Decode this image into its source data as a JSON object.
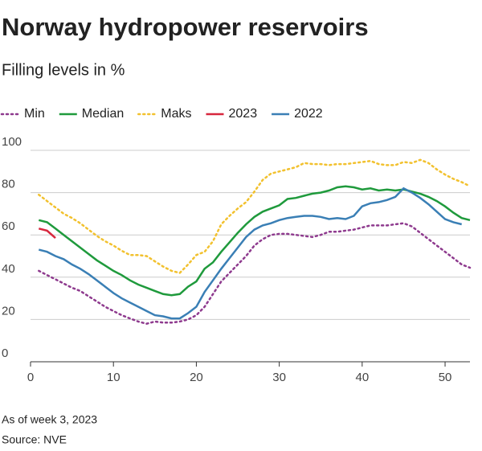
{
  "chart_data": {
    "type": "line",
    "title": "Norway hydropower reservoirs",
    "subtitle": "Filling levels in %",
    "x": [
      1,
      2,
      3,
      4,
      5,
      6,
      7,
      8,
      9,
      10,
      11,
      12,
      13,
      14,
      15,
      16,
      17,
      18,
      19,
      20,
      21,
      22,
      23,
      24,
      25,
      26,
      27,
      28,
      29,
      30,
      31,
      32,
      33,
      34,
      35,
      36,
      37,
      38,
      39,
      40,
      41,
      42,
      43,
      44,
      45,
      46,
      47,
      48,
      49,
      50,
      51,
      52,
      53
    ],
    "xlim": [
      0,
      53
    ],
    "xticks": [
      0,
      10,
      20,
      30,
      40,
      50
    ],
    "ylim": [
      0,
      100
    ],
    "yticks": [
      0,
      20,
      40,
      60,
      80,
      100
    ],
    "grid": true,
    "series": [
      {
        "name": "Min",
        "color": "#8e3a8e",
        "dash": "dotted",
        "values": [
          43,
          41,
          39,
          37,
          35,
          33.5,
          31,
          28.5,
          26,
          24,
          22,
          20.5,
          19,
          18,
          19,
          18.5,
          18.5,
          19,
          20,
          22,
          26,
          32,
          38,
          42,
          46,
          50,
          55,
          58,
          60,
          60.5,
          60.5,
          60,
          59.5,
          59,
          60,
          61.5,
          61.5,
          62,
          62.5,
          63.5,
          64.5,
          64.5,
          64.5,
          65,
          65.5,
          64,
          61,
          58,
          55,
          52,
          49,
          46,
          44.5
        ]
      },
      {
        "name": "Median",
        "color": "#1f9a3c",
        "dash": "solid",
        "values": [
          67,
          66,
          63,
          60,
          57,
          54,
          51,
          48,
          45.5,
          43,
          41,
          38.5,
          36.5,
          35,
          33.5,
          32,
          31.5,
          32,
          35.5,
          38,
          44,
          47,
          52,
          56.5,
          61,
          65,
          68.5,
          71,
          72.5,
          74,
          77,
          77.5,
          78.5,
          79.5,
          80,
          81,
          82.5,
          83,
          82.5,
          81.5,
          82,
          81,
          81.5,
          81,
          81.5,
          80.5,
          79.5,
          78,
          76,
          73.5,
          70.5,
          68,
          67
        ]
      },
      {
        "name": "Maks",
        "color": "#f2c12e",
        "dash": "dotted",
        "values": [
          79,
          76,
          73,
          70,
          68,
          65.5,
          62.5,
          59.5,
          57,
          55,
          52.5,
          50.5,
          50.5,
          50,
          47.5,
          45,
          43,
          42,
          46,
          50.5,
          52,
          57,
          65,
          69,
          72.5,
          75.5,
          80.5,
          86,
          89,
          90,
          91,
          92,
          94,
          93.5,
          93.5,
          93,
          93.5,
          93.5,
          94,
          94.5,
          95,
          93.5,
          93,
          93,
          94.5,
          94,
          95.5,
          94,
          91,
          88.5,
          86.5,
          85,
          83
        ]
      },
      {
        "name": "2023",
        "color": "#d7263d",
        "dash": "solid",
        "values": [
          63,
          62,
          58.5,
          null,
          null,
          null,
          null,
          null,
          null,
          null,
          null,
          null,
          null,
          null,
          null,
          null,
          null,
          null,
          null,
          null,
          null,
          null,
          null,
          null,
          null,
          null,
          null,
          null,
          null,
          null,
          null,
          null,
          null,
          null,
          null,
          null,
          null,
          null,
          null,
          null,
          null,
          null,
          null,
          null,
          null,
          null,
          null,
          null,
          null,
          null,
          null,
          null,
          null
        ]
      },
      {
        "name": "2022",
        "color": "#3a7fb5",
        "dash": "solid",
        "values": [
          53,
          52,
          50,
          48.5,
          46,
          44,
          41.5,
          38.5,
          35.5,
          32.5,
          30,
          28,
          26,
          24,
          22,
          21.5,
          20.5,
          20.5,
          23,
          26,
          33,
          38.5,
          44,
          49,
          54,
          59,
          62.5,
          64.5,
          65.5,
          67,
          68,
          68.5,
          69,
          69,
          68.5,
          67.5,
          68,
          67.5,
          69,
          73.5,
          75,
          75.5,
          76.5,
          78,
          82,
          80,
          77.5,
          74.5,
          71,
          67.5,
          66,
          65,
          null
        ]
      }
    ],
    "footnotes": [
      "As of week 3, 2023",
      "Source: NVE"
    ]
  }
}
